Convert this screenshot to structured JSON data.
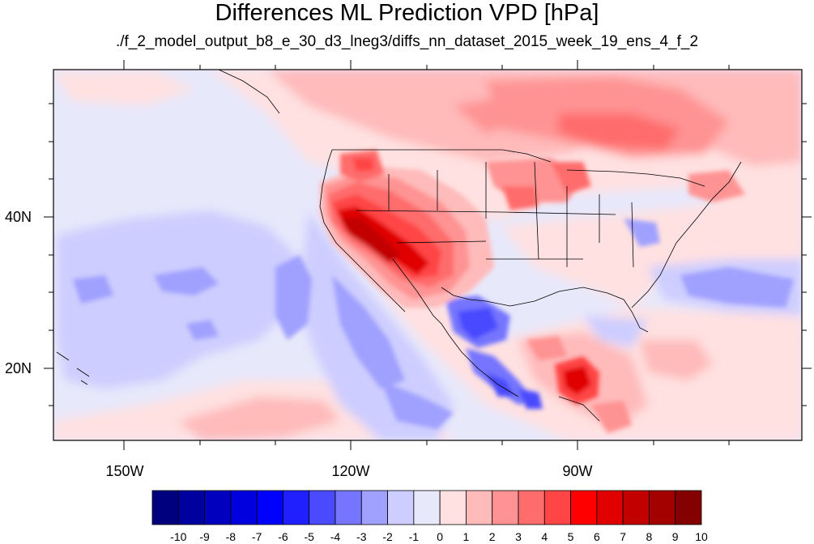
{
  "title": "Differences ML Prediction VPD [hPa]",
  "subtitle": "./f_2_model_output_b8_e_30_d3_lneg3/diffs_nn_dataset_2015_week_19_ens_4_f_2",
  "lat_labels": [
    "40N",
    "20N"
  ],
  "lon_labels": [
    "150W",
    "120W",
    "90W"
  ],
  "colorbar": {
    "labels": [
      "-10",
      "-9",
      "-8",
      "-7",
      "-6",
      "-5",
      "-4",
      "-3",
      "-2",
      "-1",
      "0",
      "1",
      "2",
      "3",
      "4",
      "5",
      "6",
      "7",
      "8",
      "9",
      "10"
    ],
    "colors": [
      "#00007f",
      "#00009e",
      "#0000be",
      "#0000de",
      "#0000ff",
      "#2020ff",
      "#4a4aff",
      "#7575ff",
      "#a0a0ff",
      "#cdcdff",
      "#e8e8fb",
      "#ffe1e1",
      "#ffbaba",
      "#ff9393",
      "#ff6c6c",
      "#ff4545",
      "#ff0000",
      "#e00000",
      "#c20000",
      "#a30000",
      "#850000"
    ]
  }
}
